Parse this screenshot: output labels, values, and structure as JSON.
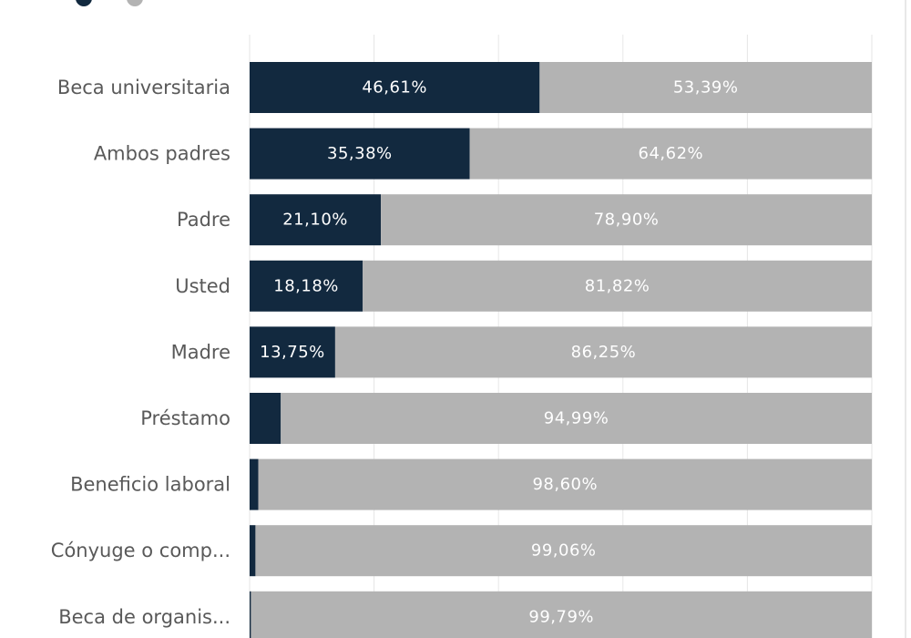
{
  "chart_data": {
    "type": "bar",
    "orientation": "horizontal",
    "stacked": "100%",
    "categories": [
      "Beca universitaria",
      "Ambos padres",
      "Padre",
      "Usted",
      "Madre",
      "Préstamo",
      "Beneficio laboral",
      "Cónyuge o comp...",
      "Beca de organis..."
    ],
    "series": [
      {
        "values": [
          46.61,
          35.38,
          21.1,
          18.18,
          13.75,
          5.01,
          1.4,
          0.94,
          0.21
        ],
        "labels": [
          "46,61%",
          "35,38%",
          "21,10%",
          "18,18%",
          "13,75%",
          "",
          "",
          "",
          ""
        ],
        "color": "#12293f"
      },
      {
        "values": [
          53.39,
          64.62,
          78.9,
          81.82,
          86.25,
          94.99,
          98.6,
          99.06,
          99.79
        ],
        "labels": [
          "53,39%",
          "64,62%",
          "78,90%",
          "81,82%",
          "86,25%",
          "94,99%",
          "98,60%",
          "99,06%",
          "99,79%"
        ],
        "color": "#b3b3b3"
      }
    ],
    "xlim": [
      0,
      100
    ],
    "grid": true,
    "legend": "top-left"
  }
}
